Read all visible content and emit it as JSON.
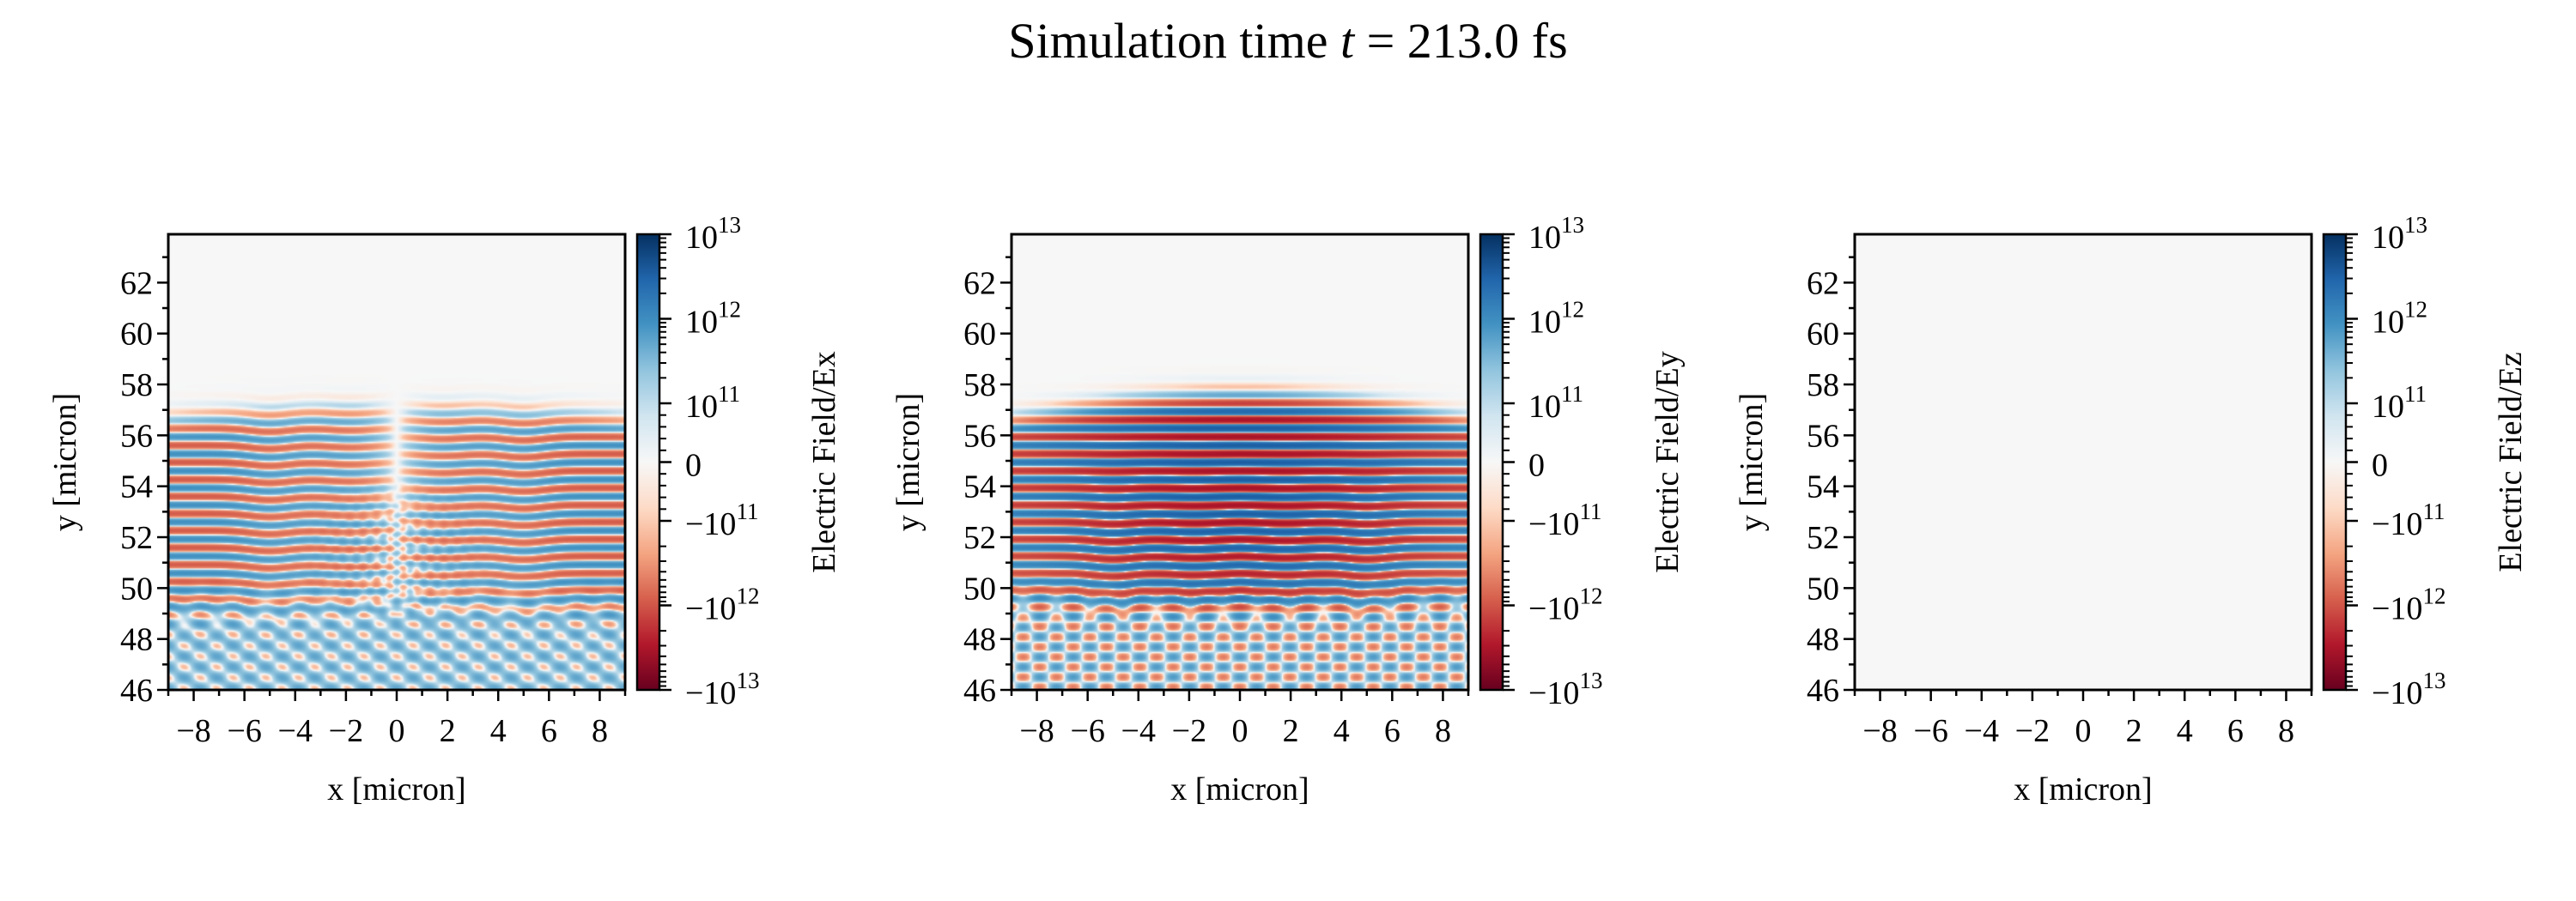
{
  "figure": {
    "title_prefix": "Simulation time ",
    "title_var": "t",
    "title_suffix": " = 213.0 fs"
  },
  "colors": {
    "cmap": "RdBu",
    "cmap_stops": [
      "#67001f",
      "#b2182b",
      "#d6604d",
      "#f4a582",
      "#fddbc7",
      "#f7f7f7",
      "#d1e5f0",
      "#92c5de",
      "#4393c3",
      "#2166ac",
      "#053061"
    ],
    "axis": "#000000"
  },
  "chart_data": [
    {
      "type": "heatmap",
      "name": "Ex",
      "title": "",
      "xlabel": "x [micron]",
      "ylabel": "y [micron]",
      "xlim": [
        -9,
        9
      ],
      "ylim": [
        46,
        63.9
      ],
      "xticks": [
        -8,
        -6,
        -4,
        -2,
        0,
        2,
        4,
        6,
        8
      ],
      "xtick_labels": [
        "−8",
        "−6",
        "−4",
        "−2",
        "0",
        "2",
        "4",
        "6",
        "8"
      ],
      "yticks": [
        46,
        48,
        50,
        52,
        54,
        56,
        58,
        60,
        62
      ],
      "ytick_labels": [
        "46",
        "48",
        "50",
        "52",
        "54",
        "56",
        "58",
        "60",
        "62"
      ],
      "colorbar_label": "Electric Field/Ex",
      "norm": "symlog",
      "vlim": [
        -10000000000000.0,
        10000000000000.0
      ],
      "colorbar_ticks": [
        10000000000000.0,
        1000000000000.0,
        100000000000.0,
        0,
        -100000000000.0,
        -1000000000000.0,
        -10000000000000.0
      ],
      "colorbar_tick_labels": [
        {
          "base": "10",
          "exp": "13"
        },
        {
          "base": "10",
          "exp": "12"
        },
        {
          "base": "10",
          "exp": "11"
        },
        {
          "base": "0",
          "exp": ""
        },
        {
          "base": "−10",
          "exp": "11"
        },
        {
          "base": "−10",
          "exp": "12"
        },
        {
          "base": "−10",
          "exp": "13"
        }
      ],
      "field_pattern": "laser-stripes-weak"
    },
    {
      "type": "heatmap",
      "name": "Ey",
      "title": "",
      "xlabel": "x [micron]",
      "ylabel": "y [micron]",
      "xlim": [
        -9,
        9
      ],
      "ylim": [
        46,
        63.9
      ],
      "xticks": [
        -8,
        -6,
        -4,
        -2,
        0,
        2,
        4,
        6,
        8
      ],
      "xtick_labels": [
        "−8",
        "−6",
        "−4",
        "−2",
        "0",
        "2",
        "4",
        "6",
        "8"
      ],
      "yticks": [
        46,
        48,
        50,
        52,
        54,
        56,
        58,
        60,
        62
      ],
      "ytick_labels": [
        "46",
        "48",
        "50",
        "52",
        "54",
        "56",
        "58",
        "60",
        "62"
      ],
      "colorbar_label": "Electric Field/Ey",
      "norm": "symlog",
      "vlim": [
        -10000000000000.0,
        10000000000000.0
      ],
      "colorbar_ticks": [
        10000000000000.0,
        1000000000000.0,
        100000000000.0,
        0,
        -100000000000.0,
        -1000000000000.0,
        -10000000000000.0
      ],
      "colorbar_tick_labels": [
        {
          "base": "10",
          "exp": "13"
        },
        {
          "base": "10",
          "exp": "12"
        },
        {
          "base": "10",
          "exp": "11"
        },
        {
          "base": "0",
          "exp": ""
        },
        {
          "base": "−10",
          "exp": "11"
        },
        {
          "base": "−10",
          "exp": "12"
        },
        {
          "base": "−10",
          "exp": "13"
        }
      ],
      "field_pattern": "laser-stripes-strong"
    },
    {
      "type": "heatmap",
      "name": "Ez",
      "title": "",
      "xlabel": "x [micron]",
      "ylabel": "y [micron]",
      "xlim": [
        -9,
        9
      ],
      "ylim": [
        46,
        63.9
      ],
      "xticks": [
        -8,
        -6,
        -4,
        -2,
        0,
        2,
        4,
        6,
        8
      ],
      "xtick_labels": [
        "−8",
        "−6",
        "−4",
        "−2",
        "0",
        "2",
        "4",
        "6",
        "8"
      ],
      "yticks": [
        46,
        48,
        50,
        52,
        54,
        56,
        58,
        60,
        62
      ],
      "ytick_labels": [
        "46",
        "48",
        "50",
        "52",
        "54",
        "56",
        "58",
        "60",
        "62"
      ],
      "colorbar_label": "Electric Field/Ez",
      "norm": "symlog",
      "vlim": [
        -10000000000000.0,
        10000000000000.0
      ],
      "colorbar_ticks": [
        10000000000000.0,
        1000000000000.0,
        100000000000.0,
        0,
        -100000000000.0,
        -1000000000000.0,
        -10000000000000.0
      ],
      "colorbar_tick_labels": [
        {
          "base": "10",
          "exp": "13"
        },
        {
          "base": "10",
          "exp": "12"
        },
        {
          "base": "10",
          "exp": "11"
        },
        {
          "base": "0",
          "exp": ""
        },
        {
          "base": "−10",
          "exp": "11"
        },
        {
          "base": "−10",
          "exp": "12"
        },
        {
          "base": "−10",
          "exp": "13"
        }
      ],
      "field_pattern": "zero"
    }
  ]
}
